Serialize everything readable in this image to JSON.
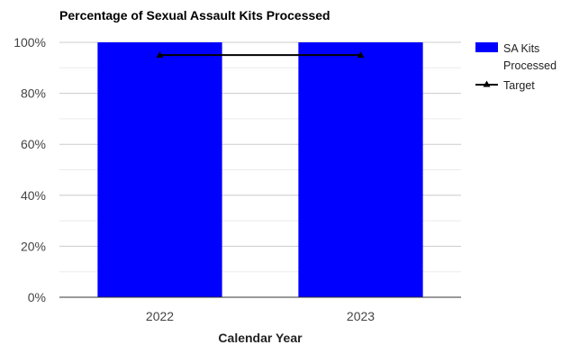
{
  "chart_data": {
    "type": "bar",
    "title": "Percentage of Sexual Assault Kits Processed",
    "xlabel": "Calendar Year",
    "ylabel": "",
    "categories": [
      "2022",
      "2023"
    ],
    "series": [
      {
        "name": "SA Kits Processed",
        "type": "bar",
        "values": [
          100,
          100
        ],
        "color": "#0000ff"
      },
      {
        "name": "Target",
        "type": "line",
        "marker": "triangle",
        "values": [
          95,
          95
        ],
        "color": "#000000"
      }
    ],
    "ylim": [
      0,
      100
    ],
    "yticks": [
      0,
      20,
      40,
      60,
      80,
      100
    ],
    "ytick_labels": [
      "0%",
      "20%",
      "40%",
      "60%",
      "80%",
      "100%"
    ],
    "grid": true,
    "legend": "right"
  },
  "legend": {
    "bar_label_line1": "SA Kits",
    "bar_label_line2": "Processed",
    "line_label": "Target"
  }
}
